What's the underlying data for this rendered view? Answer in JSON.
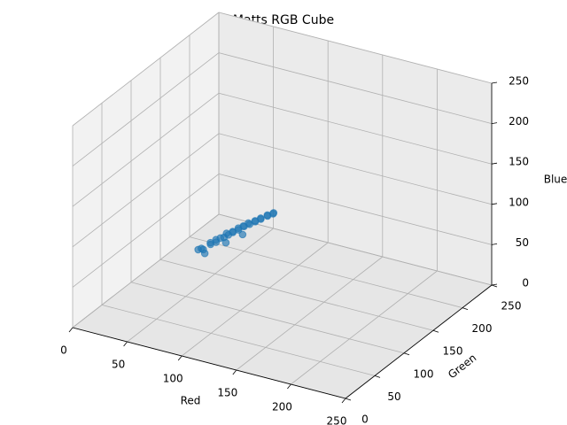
{
  "chart_data": {
    "type": "scatter3d",
    "title": "Matts RGB Cube",
    "xlabel": "Red",
    "ylabel": "Green",
    "zlabel": "Blue",
    "x": [
      40,
      42,
      44,
      46,
      48,
      50,
      52,
      54,
      55,
      57,
      58,
      60,
      62,
      63,
      65,
      66,
      68,
      70,
      71,
      73,
      75,
      76,
      78,
      80,
      82,
      84,
      85,
      45,
      60,
      70
    ],
    "y": [
      140,
      145,
      138,
      150,
      146,
      152,
      148,
      158,
      150,
      160,
      155,
      162,
      158,
      166,
      162,
      170,
      165,
      172,
      168,
      176,
      172,
      180,
      176,
      184,
      180,
      186,
      185,
      142,
      150,
      160
    ],
    "z": [
      32,
      30,
      36,
      35,
      40,
      38,
      44,
      42,
      46,
      45,
      50,
      48,
      52,
      50,
      55,
      53,
      57,
      56,
      60,
      58,
      62,
      60,
      64,
      63,
      67,
      66,
      68,
      28,
      42,
      50
    ],
    "xlim": [
      0,
      250
    ],
    "ylim": [
      0,
      250
    ],
    "zlim": [
      0,
      250
    ],
    "xticks": [
      0,
      50,
      100,
      150,
      200,
      250
    ],
    "yticks": [
      0,
      50,
      100,
      150,
      200,
      250
    ],
    "zticks": [
      0,
      50,
      100,
      150,
      200,
      250
    ],
    "color": "#1f77b4",
    "grid": true
  }
}
